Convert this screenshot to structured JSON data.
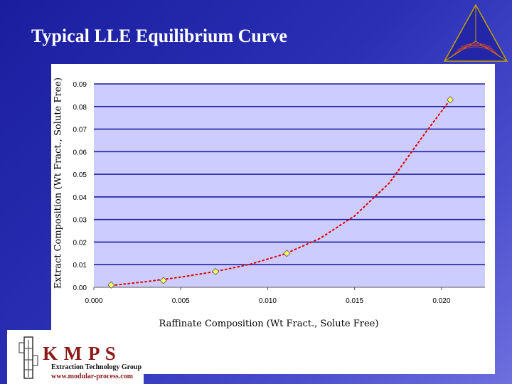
{
  "slide": {
    "title": "Typical LLE Equilibrium Curve"
  },
  "colors": {
    "background": "#2a2fb4",
    "plot_area": "#ccccff",
    "gridline": "#1f1fa0",
    "marker_fill": "#ffff66",
    "trend": "#e00000",
    "logo_accent": "#8b1a1a"
  },
  "chart_data": {
    "type": "scatter",
    "xlabel": "Raffinate Composition (Wt Fract., Solute Free)",
    "ylabel": "Extract Composition (Wt Fract., Solute Free)",
    "xlim": [
      0,
      0.0225
    ],
    "ylim": [
      0,
      0.09
    ],
    "x_ticks": [
      "0.000",
      "0.005",
      "0.010",
      "0.015",
      "0.020"
    ],
    "y_ticks": [
      "0.00",
      "0.01",
      "0.02",
      "0.03",
      "0.04",
      "0.05",
      "0.06",
      "0.07",
      "0.08",
      "0.09"
    ],
    "grid": true,
    "series": [
      {
        "points": [
          [
            0.001,
            0.001
          ],
          [
            0.004,
            0.003
          ],
          [
            0.007,
            0.007
          ],
          [
            0.0111,
            0.015
          ],
          [
            0.0205,
            0.083
          ]
        ],
        "marker": "diamond"
      }
    ],
    "trendline": {
      "style": "dotted",
      "x": [
        0.001,
        0.003,
        0.005,
        0.007,
        0.009,
        0.011,
        0.013,
        0.015,
        0.017,
        0.019,
        0.0205
      ],
      "y": [
        0.0008,
        0.0025,
        0.0045,
        0.007,
        0.0102,
        0.0148,
        0.0216,
        0.0316,
        0.0462,
        0.0676,
        0.083
      ]
    }
  },
  "logo": {
    "name": "K M P S",
    "group": "Extraction Technology Group",
    "url": "www.modular-process.com"
  }
}
